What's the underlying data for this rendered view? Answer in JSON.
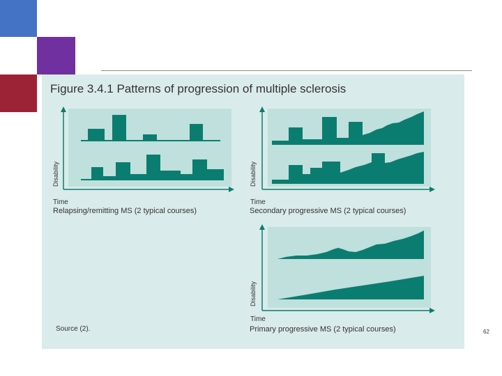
{
  "slide": {
    "figure_title": "Figure 3.4.1 Patterns of progression of multiple sclerosis",
    "page_number": "62",
    "source": "Source (2).",
    "colors": {
      "accent_blue": "#4472c4",
      "accent_purple": "#7030a0",
      "accent_red": "#9b2335",
      "figure_bg": "#d9ebea",
      "panel_bg": "#bfe0dc",
      "course_fill": "#0b7d70"
    }
  },
  "panels": [
    {
      "id": "relapsing",
      "ylabel": "Disability",
      "xlabel": "Time",
      "caption": "Relapsing/remitting MS (2 typical courses)"
    },
    {
      "id": "secondary",
      "ylabel": "Disability",
      "xlabel": "Time",
      "caption": "Secondary progressive MS (2 typical courses)"
    },
    {
      "id": "primary",
      "ylabel": "Disability",
      "xlabel": "Time",
      "caption": "Primary progressive MS (2 typical courses)"
    }
  ]
}
